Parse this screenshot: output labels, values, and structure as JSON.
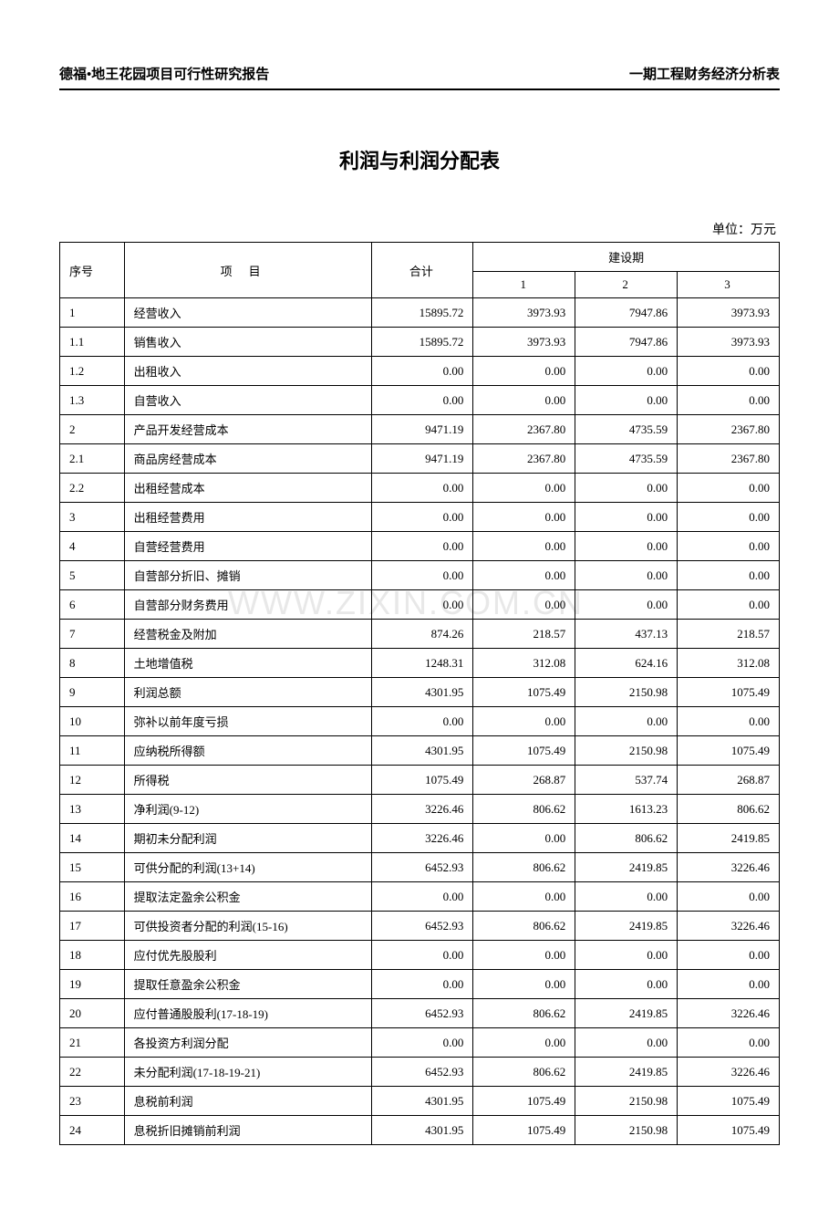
{
  "header": {
    "left": "德福•地王花园项目可行性研究报告",
    "right": "一期工程财务经济分析表"
  },
  "title": "利润与利润分配表",
  "unit": "单位：万元",
  "watermark": "WWW.ZIXIN.COM.CN",
  "table": {
    "group_header": "建设期",
    "columns": {
      "seq": "序号",
      "item": "项目",
      "total": "合计",
      "p1": "1",
      "p2": "2",
      "p3": "3"
    },
    "rows": [
      {
        "seq": "1",
        "item": "经营收入",
        "total": "15895.72",
        "p1": "3973.93",
        "p2": "7947.86",
        "p3": "3973.93"
      },
      {
        "seq": "1.1",
        "item": "销售收入",
        "total": "15895.72",
        "p1": "3973.93",
        "p2": "7947.86",
        "p3": "3973.93"
      },
      {
        "seq": "1.2",
        "item": "出租收入",
        "total": "0.00",
        "p1": "0.00",
        "p2": "0.00",
        "p3": "0.00"
      },
      {
        "seq": "1.3",
        "item": "自营收入",
        "total": "0.00",
        "p1": "0.00",
        "p2": "0.00",
        "p3": "0.00"
      },
      {
        "seq": "2",
        "item": "产品开发经营成本",
        "total": "9471.19",
        "p1": "2367.80",
        "p2": "4735.59",
        "p3": "2367.80"
      },
      {
        "seq": "2.1",
        "item": "商品房经营成本",
        "total": "9471.19",
        "p1": "2367.80",
        "p2": "4735.59",
        "p3": "2367.80"
      },
      {
        "seq": "2.2",
        "item": "出租经营成本",
        "total": "0.00",
        "p1": "0.00",
        "p2": "0.00",
        "p3": "0.00"
      },
      {
        "seq": "3",
        "item": "出租经营费用",
        "total": "0.00",
        "p1": "0.00",
        "p2": "0.00",
        "p3": "0.00"
      },
      {
        "seq": "4",
        "item": "自营经营费用",
        "total": "0.00",
        "p1": "0.00",
        "p2": "0.00",
        "p3": "0.00"
      },
      {
        "seq": "5",
        "item": "自营部分折旧、摊销",
        "total": "0.00",
        "p1": "0.00",
        "p2": "0.00",
        "p3": "0.00"
      },
      {
        "seq": "6",
        "item": "自营部分财务费用",
        "total": "0.00",
        "p1": "0.00",
        "p2": "0.00",
        "p3": "0.00"
      },
      {
        "seq": "7",
        "item": "经营税金及附加",
        "total": "874.26",
        "p1": "218.57",
        "p2": "437.13",
        "p3": "218.57"
      },
      {
        "seq": "8",
        "item": "土地增值税",
        "total": "1248.31",
        "p1": "312.08",
        "p2": "624.16",
        "p3": "312.08"
      },
      {
        "seq": "9",
        "item": "利润总额",
        "total": "4301.95",
        "p1": "1075.49",
        "p2": "2150.98",
        "p3": "1075.49"
      },
      {
        "seq": "10",
        "item": "弥补以前年度亏损",
        "total": "0.00",
        "p1": "0.00",
        "p2": "0.00",
        "p3": "0.00"
      },
      {
        "seq": "11",
        "item": "应纳税所得额",
        "total": "4301.95",
        "p1": "1075.49",
        "p2": "2150.98",
        "p3": "1075.49"
      },
      {
        "seq": "12",
        "item": "所得税",
        "total": "1075.49",
        "p1": "268.87",
        "p2": "537.74",
        "p3": "268.87"
      },
      {
        "seq": "13",
        "item": "净利润(9-12)",
        "total": "3226.46",
        "p1": "806.62",
        "p2": "1613.23",
        "p3": "806.62"
      },
      {
        "seq": "14",
        "item": "期初未分配利润",
        "total": "3226.46",
        "p1": "0.00",
        "p2": "806.62",
        "p3": "2419.85"
      },
      {
        "seq": "15",
        "item": "可供分配的利润(13+14)",
        "total": "6452.93",
        "p1": "806.62",
        "p2": "2419.85",
        "p3": "3226.46"
      },
      {
        "seq": "16",
        "item": "提取法定盈余公积金",
        "total": "0.00",
        "p1": "0.00",
        "p2": "0.00",
        "p3": "0.00"
      },
      {
        "seq": "17",
        "item": "可供投资者分配的利润(15-16)",
        "total": "6452.93",
        "p1": "806.62",
        "p2": "2419.85",
        "p3": "3226.46"
      },
      {
        "seq": "18",
        "item": "应付优先股股利",
        "total": "0.00",
        "p1": "0.00",
        "p2": "0.00",
        "p3": "0.00"
      },
      {
        "seq": "19",
        "item": "提取任意盈余公积金",
        "total": "0.00",
        "p1": "0.00",
        "p2": "0.00",
        "p3": "0.00"
      },
      {
        "seq": "20",
        "item": "应付普通股股利(17-18-19)",
        "total": "6452.93",
        "p1": "806.62",
        "p2": "2419.85",
        "p3": "3226.46"
      },
      {
        "seq": "21",
        "item": "各投资方利润分配",
        "total": "0.00",
        "p1": "0.00",
        "p2": "0.00",
        "p3": "0.00"
      },
      {
        "seq": "22",
        "item": "未分配利润(17-18-19-21)",
        "total": "6452.93",
        "p1": "806.62",
        "p2": "2419.85",
        "p3": "3226.46"
      },
      {
        "seq": "23",
        "item": "息税前利润",
        "total": "4301.95",
        "p1": "1075.49",
        "p2": "2150.98",
        "p3": "1075.49"
      },
      {
        "seq": "24",
        "item": "息税折旧摊销前利润",
        "total": "4301.95",
        "p1": "1075.49",
        "p2": "2150.98",
        "p3": "1075.49"
      }
    ]
  }
}
